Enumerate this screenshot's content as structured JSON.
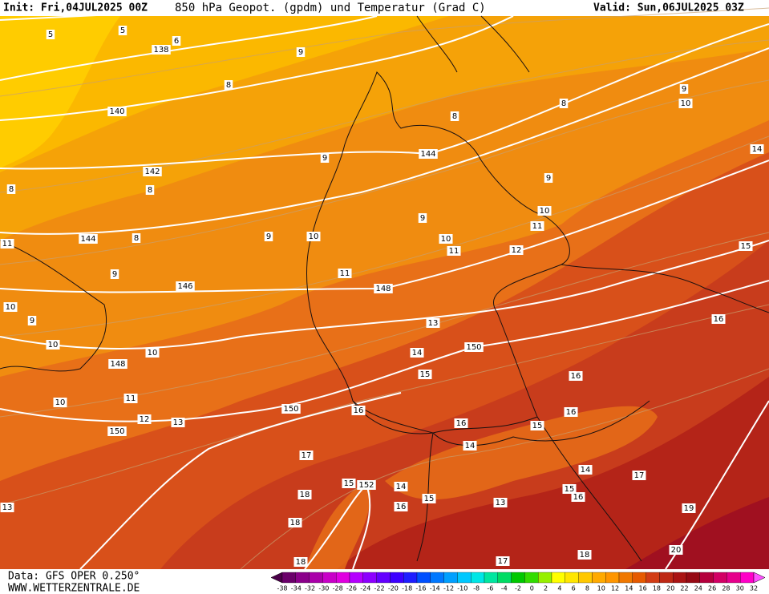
{
  "header": {
    "init": "Init: Fri,04JUL2025 00Z",
    "title": "850 hPa Geopot. (gpdm) und Temperatur (Grad C)",
    "valid": "Valid: Sun,06JUL2025 03Z"
  },
  "footer": {
    "source": "Data: GFS OPER 0.250°",
    "website": "WWW.WETTERZENTRALE.DE"
  },
  "contour_labels": [
    "5",
    "138",
    "140",
    "142",
    "144",
    "144",
    "146",
    "148",
    "148",
    "150",
    "150",
    "150",
    "152",
    "10",
    "10",
    "10",
    "10",
    "10",
    "10",
    "10",
    "15",
    "15",
    "15",
    "15",
    "15",
    "20",
    "14",
    "15",
    "16",
    "11",
    "12",
    "11",
    "11",
    "13",
    "14",
    "16",
    "16",
    "16",
    "14",
    "14",
    "17",
    "16",
    "13",
    "14",
    "16",
    "16",
    "17",
    "18",
    "18",
    "18",
    "17",
    "18",
    "19",
    "13",
    "12",
    "11",
    "9",
    "10",
    "11",
    "13",
    "9",
    "8",
    "9",
    "8",
    "8",
    "9",
    "9",
    "8",
    "8",
    "9",
    "9",
    "8",
    "5",
    "9",
    "6"
  ],
  "colorbar": {
    "labels": [
      -38,
      -34,
      -32,
      -30,
      -28,
      -26,
      -24,
      -22,
      -20,
      -18,
      -16,
      -14,
      -12,
      -10,
      -8,
      -6,
      -4,
      -2,
      0,
      2,
      4,
      6,
      8,
      10,
      12,
      14,
      16,
      18,
      20,
      22,
      24,
      26,
      28,
      30,
      32
    ],
    "colors": [
      "#4a0048",
      "#6a006a",
      "#8a008a",
      "#aa00aa",
      "#c800c8",
      "#e000e0",
      "#b400ff",
      "#8c00ff",
      "#6400ff",
      "#3c00ff",
      "#1e1eff",
      "#0050ff",
      "#0078ff",
      "#00a0ff",
      "#00c8ff",
      "#00e6e6",
      "#00e6a0",
      "#00dc64",
      "#00c800",
      "#32dc00",
      "#96f000",
      "#ffff00",
      "#ffe600",
      "#ffc800",
      "#ffaa00",
      "#ff9600",
      "#f07800",
      "#e65a00",
      "#d23c14",
      "#be2814",
      "#aa1414",
      "#960a14",
      "#b4003c",
      "#d20064",
      "#e6008c",
      "#ff00c8",
      "#ff50ff"
    ]
  }
}
